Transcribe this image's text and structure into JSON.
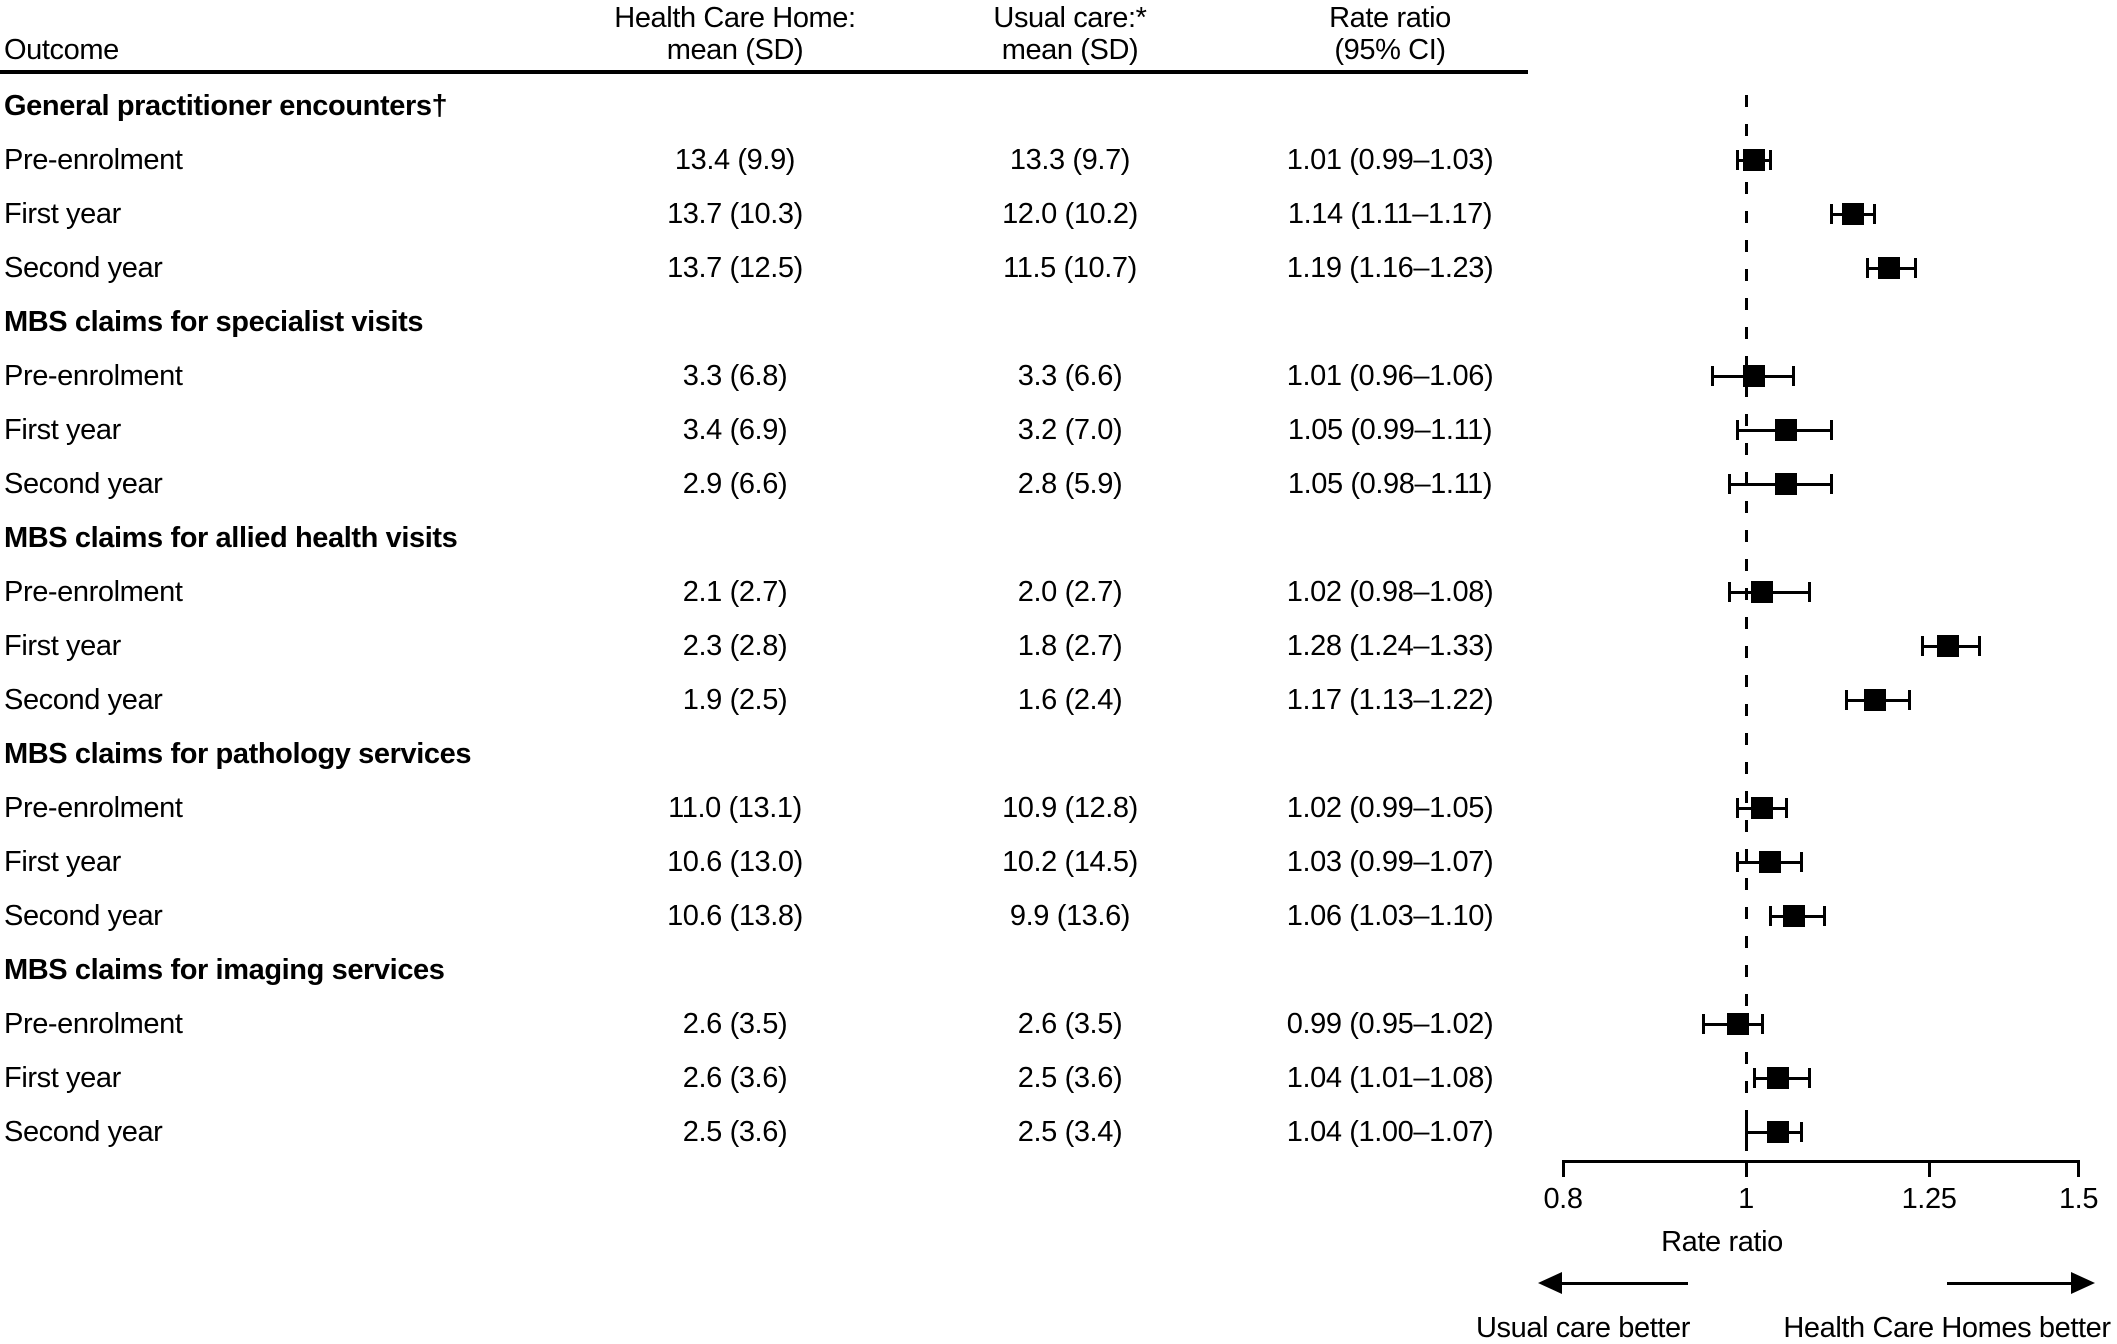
{
  "table_header": {
    "outcome": "Outcome",
    "hch_line1": "Health Care Home:",
    "hch_line2": "mean (SD)",
    "usual_line1": "Usual care:*",
    "usual_line2": "mean (SD)",
    "rr_line1": "Rate ratio",
    "rr_line2": "(95% CI)"
  },
  "chart_data": {
    "type": "forest",
    "x_scale": "log",
    "xlim": [
      0.8,
      1.5
    ],
    "reference_line": 1,
    "axis": {
      "label": "Rate ratio",
      "ticks": [
        0.8,
        1,
        1.25,
        1.5
      ],
      "tick_labels": [
        "0.8",
        "1",
        "1.25",
        "1.5"
      ]
    },
    "direction_labels": {
      "left": "Usual care better",
      "right": "Health Care Homes better"
    },
    "sections": [
      {
        "title": "General practitioner encounters†",
        "rows": [
          {
            "label": "Pre-enrolment",
            "hch": "13.4 (9.9)",
            "usual": "13.3 (9.7)",
            "rr_text": "1.01 (0.99–1.03)",
            "rr": 1.01,
            "ci": [
              0.99,
              1.03
            ]
          },
          {
            "label": "First year",
            "hch": "13.7 (10.3)",
            "usual": "12.0 (10.2)",
            "rr_text": "1.14 (1.11–1.17)",
            "rr": 1.14,
            "ci": [
              1.11,
              1.17
            ]
          },
          {
            "label": "Second year",
            "hch": "13.7 (12.5)",
            "usual": "11.5 (10.7)",
            "rr_text": "1.19 (1.16–1.23)",
            "rr": 1.19,
            "ci": [
              1.16,
              1.23
            ]
          }
        ]
      },
      {
        "title": "MBS claims for specialist visits",
        "rows": [
          {
            "label": "Pre-enrolment",
            "hch": "3.3 (6.8)",
            "usual": "3.3 (6.6)",
            "rr_text": "1.01 (0.96–1.06)",
            "rr": 1.01,
            "ci": [
              0.96,
              1.06
            ]
          },
          {
            "label": "First year",
            "hch": "3.4 (6.9)",
            "usual": "3.2 (7.0)",
            "rr_text": "1.05 (0.99–1.11)",
            "rr": 1.05,
            "ci": [
              0.99,
              1.11
            ]
          },
          {
            "label": "Second year",
            "hch": "2.9 (6.6)",
            "usual": "2.8 (5.9)",
            "rr_text": "1.05 (0.98–1.11)",
            "rr": 1.05,
            "ci": [
              0.98,
              1.11
            ]
          }
        ]
      },
      {
        "title": "MBS claims for allied health visits",
        "rows": [
          {
            "label": "Pre-enrolment",
            "hch": "2.1 (2.7)",
            "usual": "2.0 (2.7)",
            "rr_text": "1.02 (0.98–1.08)",
            "rr": 1.02,
            "ci": [
              0.98,
              1.08
            ]
          },
          {
            "label": "First year",
            "hch": "2.3 (2.8)",
            "usual": "1.8 (2.7)",
            "rr_text": "1.28 (1.24–1.33)",
            "rr": 1.28,
            "ci": [
              1.24,
              1.33
            ]
          },
          {
            "label": "Second year",
            "hch": "1.9 (2.5)",
            "usual": "1.6 (2.4)",
            "rr_text": "1.17 (1.13–1.22)",
            "rr": 1.17,
            "ci": [
              1.13,
              1.22
            ]
          }
        ]
      },
      {
        "title": "MBS claims for pathology services",
        "rows": [
          {
            "label": "Pre-enrolment",
            "hch": "11.0 (13.1)",
            "usual": "10.9 (12.8)",
            "rr_text": "1.02 (0.99–1.05)",
            "rr": 1.02,
            "ci": [
              0.99,
              1.05
            ]
          },
          {
            "label": "First year",
            "hch": "10.6 (13.0)",
            "usual": "10.2 (14.5)",
            "rr_text": "1.03 (0.99–1.07)",
            "rr": 1.03,
            "ci": [
              0.99,
              1.07
            ]
          },
          {
            "label": "Second year",
            "hch": "10.6 (13.8)",
            "usual": "9.9 (13.6)",
            "rr_text": "1.06 (1.03–1.10)",
            "rr": 1.06,
            "ci": [
              1.03,
              1.1
            ]
          }
        ]
      },
      {
        "title": "MBS claims for imaging services",
        "rows": [
          {
            "label": "Pre-enrolment",
            "hch": "2.6 (3.5)",
            "usual": "2.6 (3.5)",
            "rr_text": "0.99 (0.95–1.02)",
            "rr": 0.99,
            "ci": [
              0.95,
              1.02
            ]
          },
          {
            "label": "First year",
            "hch": "2.6 (3.6)",
            "usual": "2.5 (3.6)",
            "rr_text": "1.04 (1.01–1.08)",
            "rr": 1.04,
            "ci": [
              1.01,
              1.08
            ]
          },
          {
            "label": "Second year",
            "hch": "2.5 (3.6)",
            "usual": "2.5 (3.4)",
            "rr_text": "1.04 (1.00–1.07)",
            "rr": 1.04,
            "ci": [
              1.0,
              1.07
            ]
          }
        ]
      }
    ]
  }
}
